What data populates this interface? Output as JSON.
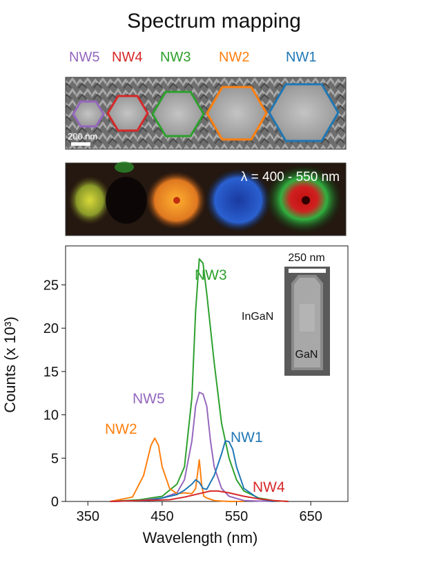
{
  "title": "Spectrum mapping",
  "nw_labels": [
    {
      "name": "NW5",
      "color": "#9467bd"
    },
    {
      "name": "NW4",
      "color": "#d62728"
    },
    {
      "name": "NW3",
      "color": "#2ca02c"
    },
    {
      "name": "NW2",
      "color": "#ff7f0e"
    },
    {
      "name": "NW1",
      "color": "#1f77b4"
    }
  ],
  "sem_scalebar_label": "200 nm",
  "map_label": "λ = 400 - 550 nm",
  "inset": {
    "scalebar_label": "250 nm",
    "label_top": "InGaN",
    "label_bottom": "GaN"
  },
  "chart_data": {
    "type": "line",
    "xlabel": "Wavelength (nm)",
    "ylabel": "Counts (x 10³)",
    "xlim": [
      320,
      700
    ],
    "ylim": [
      0,
      29.5
    ],
    "xticks": [
      350,
      450,
      550,
      650
    ],
    "yticks": [
      0,
      5,
      10,
      15,
      20,
      25
    ],
    "grid": false,
    "series": [
      {
        "name": "NW3",
        "color": "#2ca02c",
        "x": [
          380,
          420,
          450,
          470,
          480,
          490,
          495,
          500,
          505,
          510,
          520,
          530,
          540,
          550,
          560,
          580,
          600,
          620
        ],
        "y": [
          0,
          0.2,
          0.6,
          2,
          4,
          12,
          22,
          28,
          27.5,
          24,
          16,
          9,
          5,
          2.5,
          1.2,
          0.4,
          0.1,
          0
        ]
      },
      {
        "name": "NW5",
        "color": "#9467bd",
        "x": [
          380,
          420,
          450,
          470,
          480,
          490,
          495,
          500,
          505,
          510,
          515,
          520,
          530,
          540,
          560,
          600
        ],
        "y": [
          0,
          0.1,
          0.4,
          1,
          2.5,
          7,
          11,
          12.6,
          12.4,
          11,
          7,
          4,
          1.5,
          0.6,
          0.1,
          0
        ]
      },
      {
        "name": "NW2",
        "color": "#ff7f0e",
        "x": [
          380,
          410,
          425,
          435,
          440,
          445,
          450,
          460,
          470,
          480,
          490,
          495,
          498,
          500,
          503,
          506,
          510,
          520,
          540,
          560
        ],
        "y": [
          0,
          0.5,
          3,
          6.5,
          7.3,
          6.5,
          4,
          1.5,
          0.9,
          1,
          0.9,
          1.5,
          3.5,
          4.8,
          2,
          0.6,
          0.4,
          0.1,
          0,
          0
        ]
      },
      {
        "name": "NW1",
        "color": "#1f77b4",
        "x": [
          380,
          430,
          450,
          470,
          480,
          490,
          495,
          500,
          505,
          510,
          520,
          530,
          535,
          540,
          545,
          550,
          560,
          580,
          600
        ],
        "y": [
          0,
          0.1,
          0.4,
          0.8,
          1.3,
          2,
          2.5,
          2.2,
          1.5,
          1.4,
          3,
          5.5,
          7,
          6.9,
          6,
          4,
          1.5,
          0.3,
          0
        ]
      },
      {
        "name": "NW4",
        "color": "#d62728",
        "x": [
          380,
          460,
          480,
          500,
          515,
          525,
          540,
          560,
          580,
          600,
          620
        ],
        "y": [
          0,
          0.2,
          0.5,
          0.9,
          1.2,
          1.2,
          1,
          0.6,
          0.3,
          0.1,
          0
        ]
      }
    ],
    "annotations": [
      {
        "text": "NW3",
        "color": "#2ca02c"
      },
      {
        "text": "NW5",
        "color": "#9467bd"
      },
      {
        "text": "NW2",
        "color": "#ff7f0e"
      },
      {
        "text": "NW1",
        "color": "#1f77b4"
      },
      {
        "text": "NW4",
        "color": "#d62728"
      }
    ]
  }
}
